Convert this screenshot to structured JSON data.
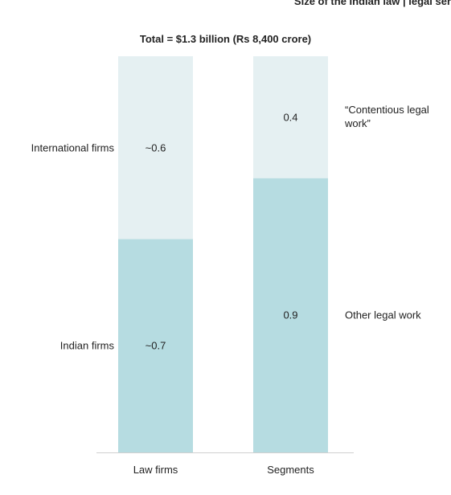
{
  "chart_data": {
    "type": "stacked-bar",
    "header": "Size of the Indian law | legal ser",
    "title": "Total = $1.3 billion (Rs 8,400 crore)",
    "categories": [
      "Law firms",
      "Segments"
    ],
    "ylim": [
      0,
      1.3
    ],
    "bars": [
      {
        "segments": [
          {
            "name": "Indian firms",
            "value": 0.7,
            "value_label": "~0.7",
            "color": "#b6dce1"
          },
          {
            "name": "International firms",
            "value": 0.6,
            "value_label": "~0.6",
            "color": "#e5f0f2"
          }
        ]
      },
      {
        "segments": [
          {
            "name": "Other legal work",
            "value": 0.9,
            "value_label": "0.9",
            "color": "#b6dce1"
          },
          {
            "name": "“Contentious legal work”",
            "value": 0.4,
            "value_label": "0.4",
            "color": "#e5f0f2"
          }
        ]
      }
    ]
  }
}
